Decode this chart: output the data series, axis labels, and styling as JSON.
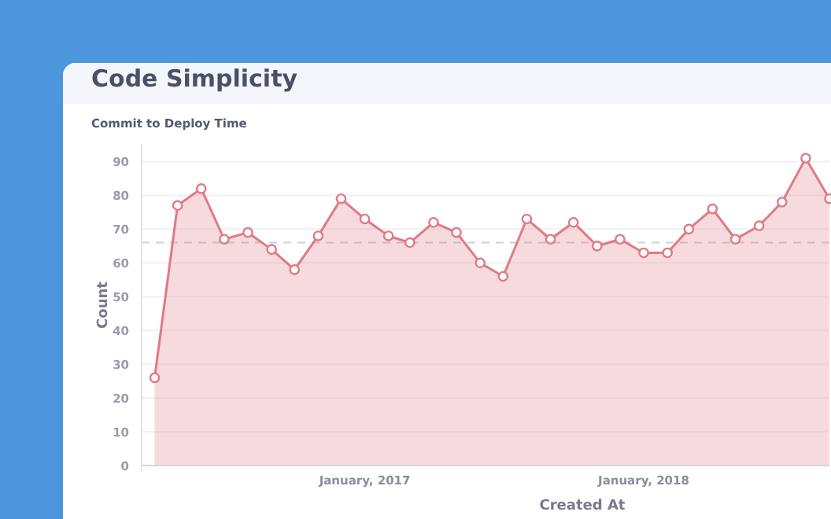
{
  "chart_data": {
    "type": "area",
    "title": "Code Simplicity",
    "subtitle": "Commit to Deploy Time",
    "xlabel": "Created At",
    "ylabel": "Count",
    "x": [
      "2016-04",
      "2016-05",
      "2016-06",
      "2016-07",
      "2016-08",
      "2016-09",
      "2016-10",
      "2016-11",
      "2016-12",
      "2017-01",
      "2017-02",
      "2017-03",
      "2017-04",
      "2017-05",
      "2017-06",
      "2017-07",
      "2017-08",
      "2017-09",
      "2017-10",
      "2017-11",
      "2017-12",
      "2018-01",
      "2018-02",
      "2018-03",
      "2018-04",
      "2018-05",
      "2018-06",
      "2018-07",
      "2018-08",
      "2018-09"
    ],
    "series": [
      {
        "color": "#e07a85",
        "values": [
          26,
          77,
          82,
          67,
          69,
          64,
          58,
          68,
          79,
          73,
          68,
          66,
          72,
          69,
          60,
          56,
          73,
          67,
          72,
          65,
          67,
          63,
          63,
          70,
          76,
          67,
          71,
          78,
          91,
          79
        ]
      }
    ],
    "xlim": [
      "2016-03-15",
      "2018-09"
    ],
    "xticks": [
      {
        "value": "2017-01",
        "label": "January, 2017"
      },
      {
        "value": "2018-01",
        "label": "January, 2018"
      }
    ],
    "ylim": [
      0,
      95
    ],
    "yticks": [
      0,
      10,
      20,
      30,
      40,
      50,
      60,
      70,
      80,
      90
    ],
    "ref_lines": [
      {
        "axis": "y",
        "value": 66,
        "color": "#cfcfd6",
        "line_style": "dashed"
      }
    ],
    "grid": "y",
    "marker": "circle",
    "line_style": "solid"
  }
}
